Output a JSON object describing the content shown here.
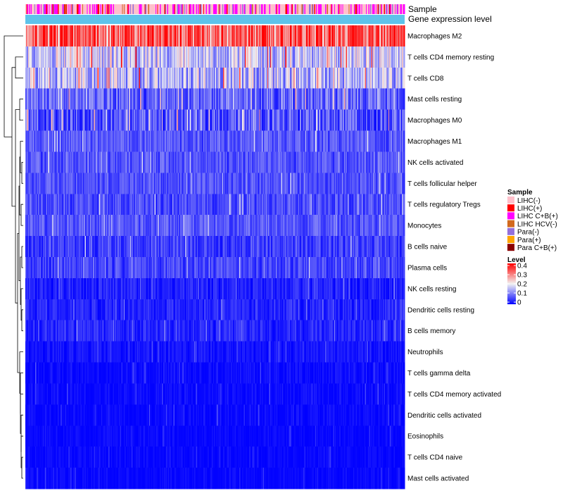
{
  "chart_data": {
    "type": "heatmap",
    "annotation_tracks": [
      "Sample",
      "Gene expression level"
    ],
    "rows": [
      {
        "label": "Macrophages M2",
        "mean": 0.32,
        "spread": 0.11
      },
      {
        "label": "T cells CD4 memory resting",
        "mean": 0.17,
        "spread": 0.09
      },
      {
        "label": "T cells CD8",
        "mean": 0.15,
        "spread": 0.09
      },
      {
        "label": "Mast cells resting",
        "mean": 0.08,
        "spread": 0.06
      },
      {
        "label": "Macrophages M0",
        "mean": 0.07,
        "spread": 0.07
      },
      {
        "label": "Macrophages M1",
        "mean": 0.07,
        "spread": 0.04
      },
      {
        "label": "NK cells activated",
        "mean": 0.065,
        "spread": 0.04
      },
      {
        "label": "T cells follicular helper",
        "mean": 0.065,
        "spread": 0.04
      },
      {
        "label": "T cells regulatory  Tregs",
        "mean": 0.06,
        "spread": 0.04
      },
      {
        "label": "Monocytes",
        "mean": 0.07,
        "spread": 0.04
      },
      {
        "label": "B cells naive",
        "mean": 0.05,
        "spread": 0.04
      },
      {
        "label": "Plasma cells",
        "mean": 0.055,
        "spread": 0.04
      },
      {
        "label": "NK cells resting",
        "mean": 0.025,
        "spread": 0.03
      },
      {
        "label": "Dendritic cells resting",
        "mean": 0.03,
        "spread": 0.03
      },
      {
        "label": "B cells memory",
        "mean": 0.03,
        "spread": 0.03
      },
      {
        "label": "Neutrophils",
        "mean": 0.015,
        "spread": 0.02
      },
      {
        "label": "T cells gamma delta",
        "mean": 0.008,
        "spread": 0.02
      },
      {
        "label": "T cells CD4 memory activated",
        "mean": 0.006,
        "spread": 0.02
      },
      {
        "label": "Dendritic cells activated",
        "mean": 0.005,
        "spread": 0.02
      },
      {
        "label": "Eosinophils",
        "mean": 0.004,
        "spread": 0.015
      },
      {
        "label": "T cells CD4 naive",
        "mean": 0.004,
        "spread": 0.015
      },
      {
        "label": "Mast cells activated",
        "mean": 0.004,
        "spread": 0.015
      }
    ],
    "n_samples": 420,
    "color_scale": {
      "min": 0,
      "max": 0.4,
      "low": "#0000ff",
      "mid": "#f2f2f2",
      "high": "#ff0000",
      "midpoint": 0.2
    },
    "expression_track_color": "#5ec3ea",
    "legends": {
      "sample": {
        "title": "Sample",
        "items": [
          {
            "label": "LIHC(-)",
            "color": "#ffc0cb"
          },
          {
            "label": "LIHC(+)",
            "color": "#ff0000"
          },
          {
            "label": "LIHC C+B(+)",
            "color": "#ff00ff"
          },
          {
            "label": "LIHC HCV(-)",
            "color": "#d2691e"
          },
          {
            "label": "Para(-)",
            "color": "#9370db"
          },
          {
            "label": "Para(+)",
            "color": "#ffa500"
          },
          {
            "label": "Para C+B(+)",
            "color": "#8b0000"
          }
        ]
      },
      "level": {
        "title": "Level",
        "ticks": [
          "0.4",
          "0.3",
          "0.2",
          "0.1",
          "0"
        ]
      }
    }
  }
}
